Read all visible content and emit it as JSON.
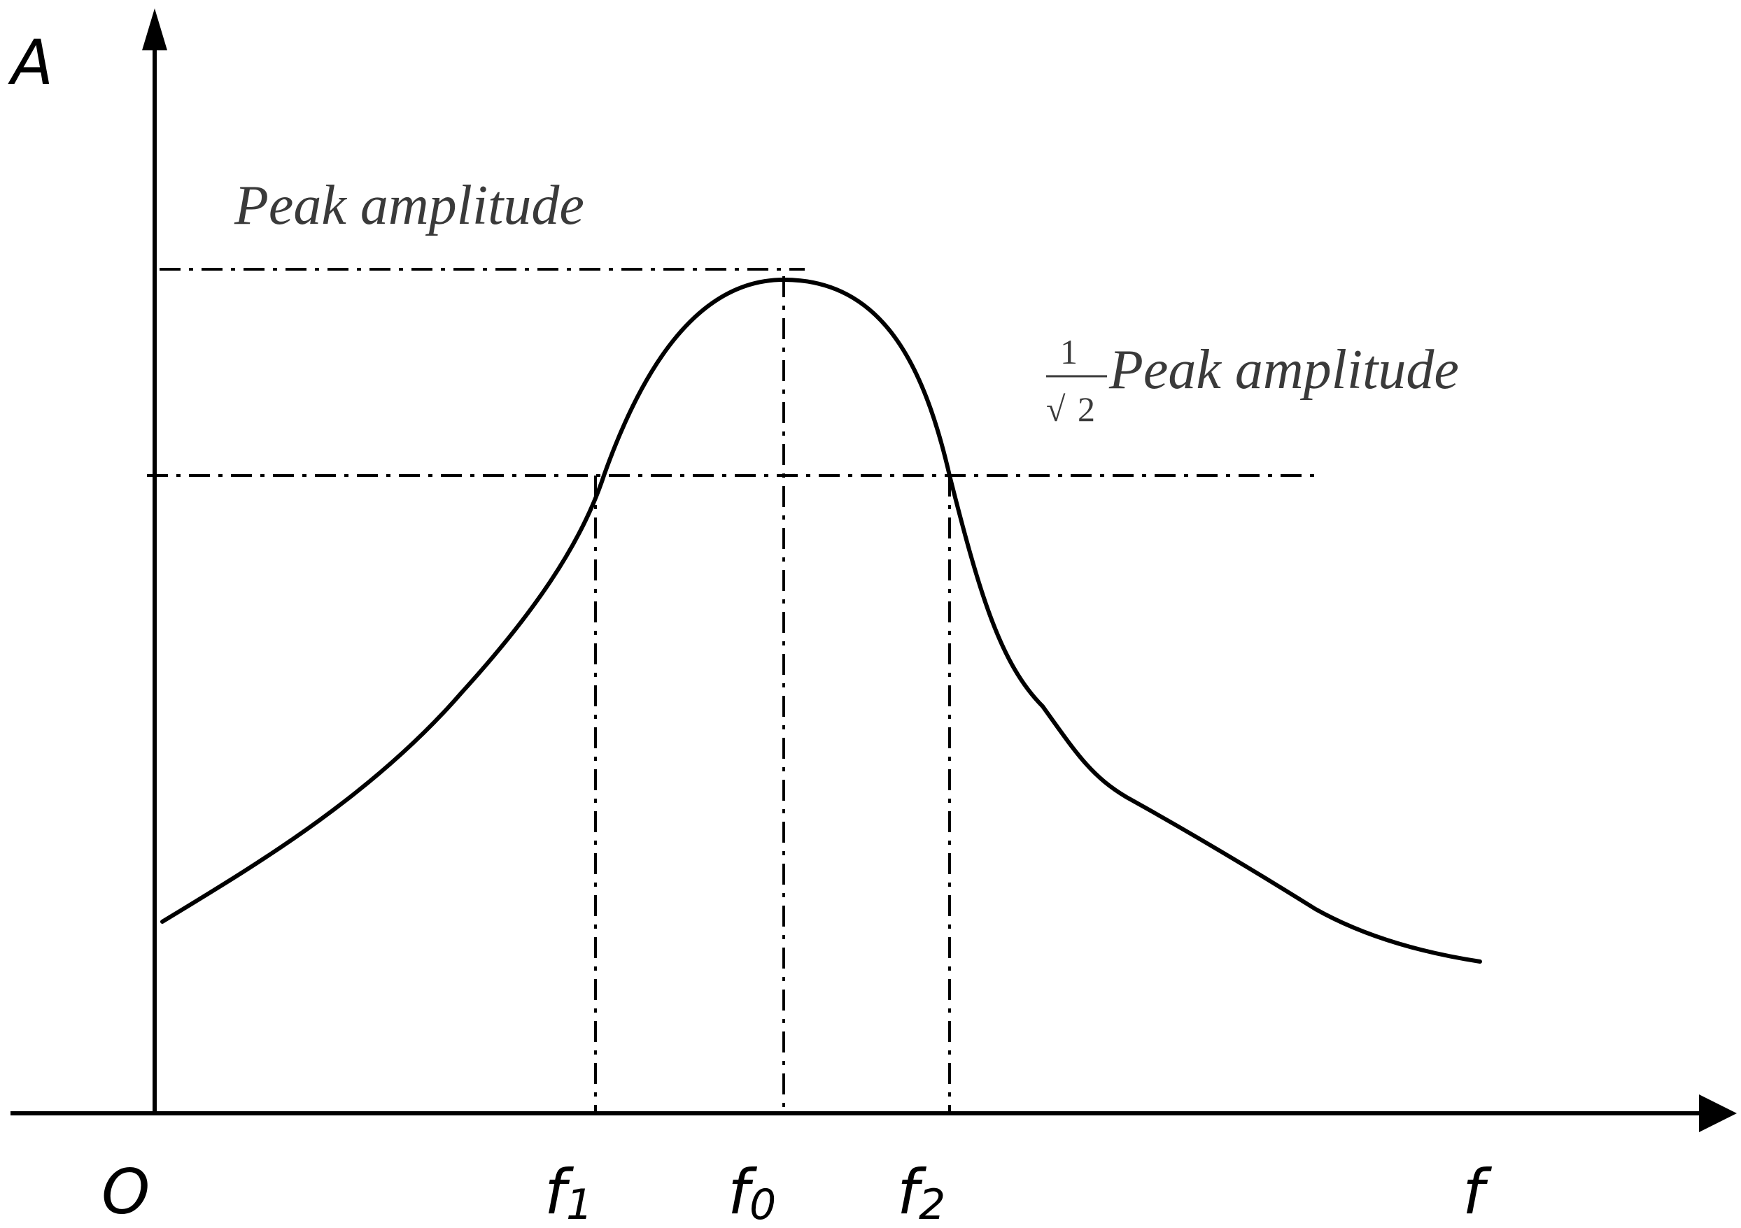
{
  "axes": {
    "y_label": "A",
    "x_label": "f",
    "origin_label": "O"
  },
  "ticks": [
    {
      "base": "f",
      "sub": "1"
    },
    {
      "base": "f",
      "sub": "0"
    },
    {
      "base": "f",
      "sub": "2"
    }
  ],
  "annotations": {
    "peak": "Peak amplitude",
    "half_power": {
      "numerator": "1",
      "radical": "√",
      "radicand": "2",
      "text": "Peak amplitude"
    }
  }
}
